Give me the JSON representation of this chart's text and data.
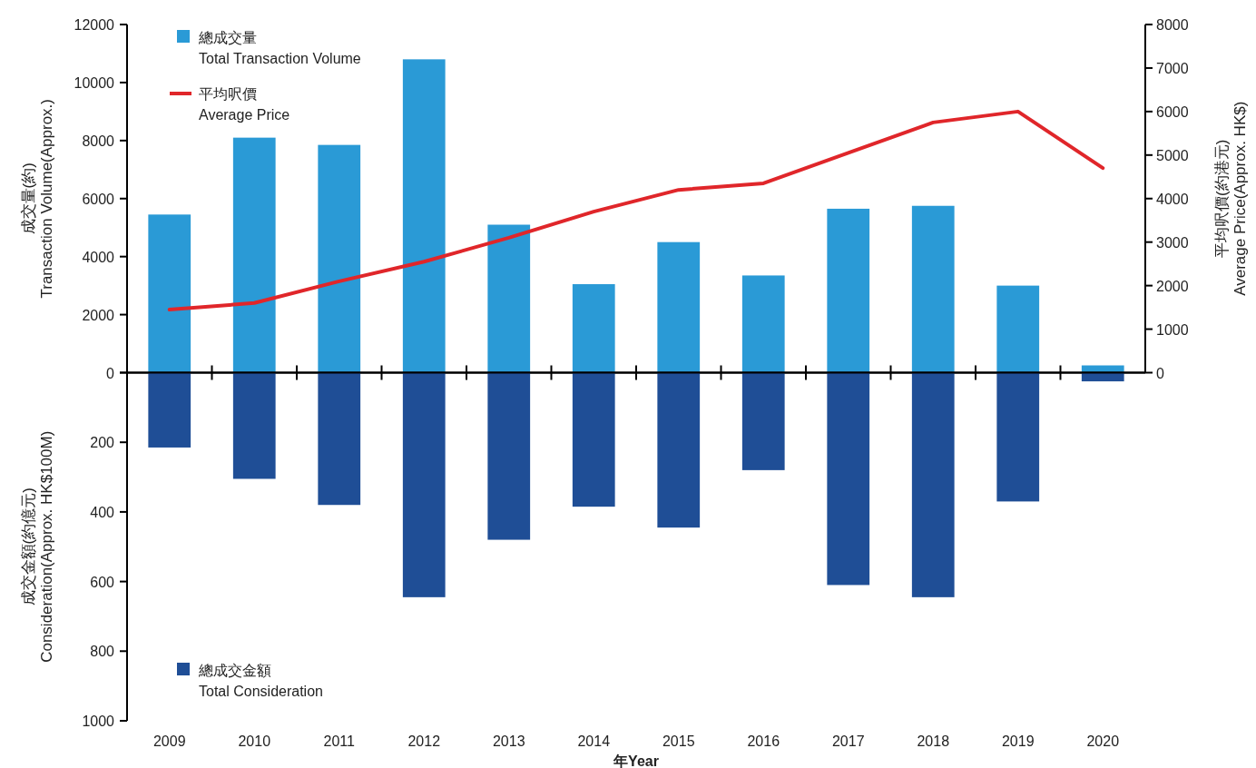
{
  "chart_data": [
    {
      "type": "bar",
      "categories": [
        "2009",
        "2010",
        "2011",
        "2012",
        "2013",
        "2014",
        "2015",
        "2016",
        "2017",
        "2018",
        "2019",
        "2020"
      ],
      "series": [
        {
          "name": "總成交量\nTotal Transaction Volume",
          "color": "#2a9ad6",
          "values": [
            5450,
            8100,
            7850,
            10800,
            5100,
            3050,
            4500,
            3350,
            5650,
            5750,
            3000,
            250
          ]
        },
        {
          "type": "line",
          "axis": "y2",
          "name": "平均呎價\nAverage Price",
          "color": "#e0262a",
          "values": [
            1450,
            1600,
            2100,
            2550,
            3100,
            3700,
            4200,
            4350,
            5050,
            5750,
            6000,
            4700
          ]
        }
      ],
      "ylabel": "成交量(約)\nTransaction Volume(Approx.)",
      "y2label": "平均呎價(約港元)\nAverage Price(Approx. HK$)",
      "ylim": [
        0,
        12000
      ],
      "yticks": [
        0,
        2000,
        4000,
        6000,
        8000,
        10000,
        12000
      ],
      "y2lim": [
        0,
        8000
      ],
      "y2ticks": [
        0,
        1000,
        2000,
        3000,
        4000,
        5000,
        6000,
        7000,
        8000
      ],
      "tick_labels": "y",
      "legend": "top left"
    },
    {
      "type": "bar",
      "categories": [
        "2009",
        "2010",
        "2011",
        "2012",
        "2013",
        "2014",
        "2015",
        "2016",
        "2017",
        "2018",
        "2019",
        "2020"
      ],
      "series": [
        {
          "name": "總成交金額\nTotal Consideration",
          "color": "#1f4e96",
          "values": [
            215,
            305,
            380,
            645,
            480,
            385,
            445,
            280,
            610,
            645,
            370,
            25
          ]
        }
      ],
      "xlabel": "年Year",
      "ylabel": "成交金額(約億元)\nConsideration(Approx. HK$100M)",
      "ylim": [
        1000,
        0
      ],
      "yticks": [
        {
          "value": 0,
          "label": null
        },
        200,
        400,
        600,
        800,
        1000
      ],
      "legend": "bottom left"
    }
  ]
}
